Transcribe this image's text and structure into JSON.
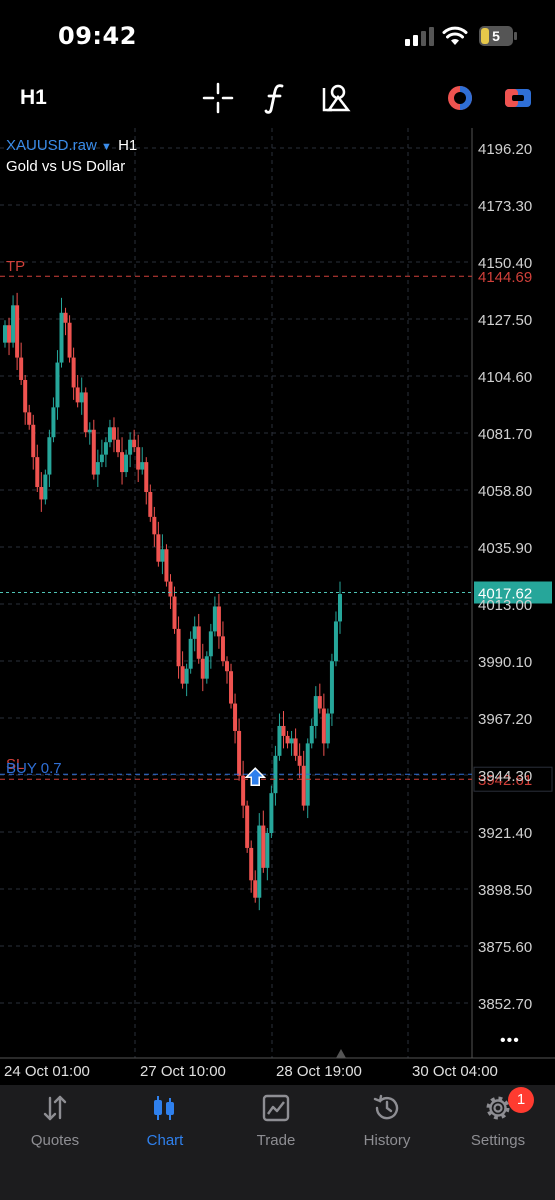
{
  "status_bar": {
    "time": "09:42",
    "battery_level": "5"
  },
  "toolbar": {
    "timeframe": "H1"
  },
  "chart": {
    "symbol": "XAUUSD.raw",
    "symbol_dropdown": "▼",
    "timeframe": "H1",
    "description": "Gold vs US Dollar",
    "price_labels": [
      "4196.20",
      "4173.30",
      "4150.40",
      "4127.50",
      "4104.60",
      "4081.70",
      "4058.80",
      "4035.90",
      "4013.00",
      "3990.10",
      "3967.20",
      "3944.30",
      "3921.40",
      "3898.50",
      "3875.60",
      "3852.70"
    ],
    "time_labels": [
      "24 Oct 01:00",
      "27 Oct 10:00",
      "28 Oct 19:00",
      "30 Oct 04:00"
    ],
    "tp_label": "TP",
    "tp_price": "4144.69",
    "sl_label": "SL",
    "buy_label": "BUY 0.7",
    "sl_price": "3942.61",
    "current_price": "4017.62",
    "more_label": "•••",
    "colors": {
      "up": "#26a69a",
      "down": "#ef5350",
      "tp": "#d0403a",
      "buy": "#2f6fd6",
      "grid": "#2a2f3a"
    }
  },
  "chart_data": {
    "type": "candlestick",
    "symbol": "XAUUSD.raw",
    "timeframe": "H1",
    "ylim": [
      3835,
      4205
    ],
    "close": [
      4125,
      4118,
      4133,
      4112,
      4103,
      4090,
      4085,
      4072,
      4060,
      4055,
      4065,
      4080,
      4092,
      4110,
      4130,
      4126,
      4112,
      4100,
      4094,
      4098,
      4082,
      4083,
      4065,
      4070,
      4073,
      4078,
      4084,
      4079,
      4074,
      4066,
      4073,
      4079,
      4076,
      4067,
      4070,
      4058,
      4048,
      4041,
      4030,
      4035,
      4022,
      4016,
      4003,
      3988,
      3981,
      3987,
      3999,
      4004,
      3991,
      3983,
      3992,
      4002,
      4012,
      4000,
      3990,
      3986,
      3973,
      3962,
      3944,
      3932,
      3915,
      3902,
      3895,
      3924,
      3907,
      3921,
      3937,
      3952,
      3964,
      3960,
      3957,
      3959,
      3952,
      3948,
      3932,
      3957,
      3964,
      3976,
      3971,
      3957,
      3969,
      3990,
      4006,
      4017
    ]
  },
  "tabs": [
    {
      "label": "Quotes",
      "icon": "quotes-icon"
    },
    {
      "label": "Chart",
      "icon": "chart-icon"
    },
    {
      "label": "Trade",
      "icon": "trade-icon"
    },
    {
      "label": "History",
      "icon": "history-icon"
    },
    {
      "label": "Settings",
      "icon": "settings-icon"
    }
  ],
  "settings_badge": "1"
}
